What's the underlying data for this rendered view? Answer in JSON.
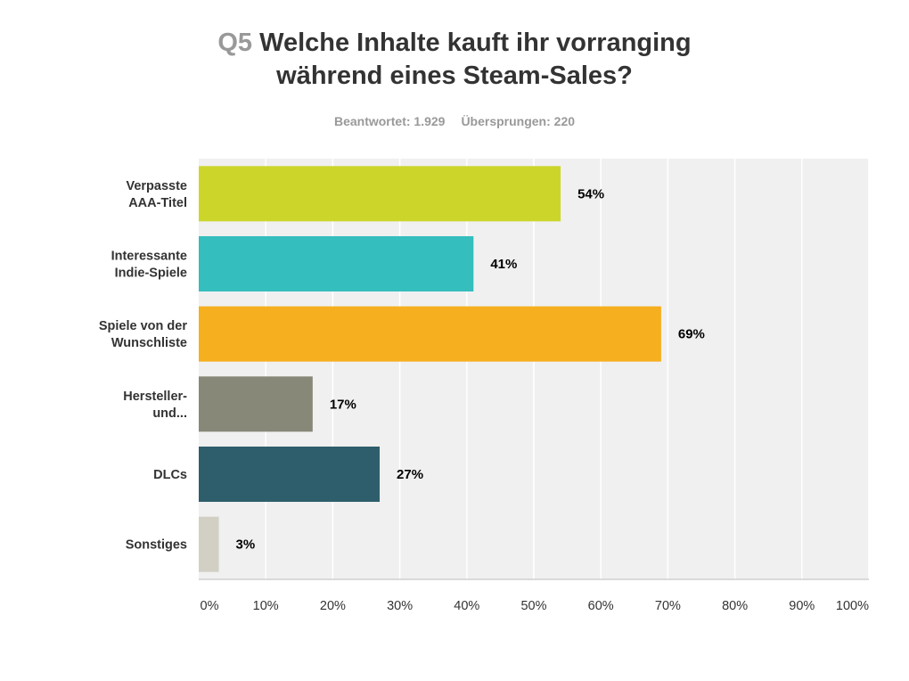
{
  "question": {
    "number": "Q5",
    "title_line1": "Welche Inhalte kauft ihr vorranging",
    "title_line2": "während eines Steam-Sales?"
  },
  "stats": {
    "answered": "Beantwortet: 1.929",
    "skipped": "Übersprungen: 220"
  },
  "chart_data": {
    "type": "bar",
    "orientation": "horizontal",
    "title": "Welche Inhalte kauft ihr vorranging während eines Steam-Sales?",
    "categories": [
      [
        "Verpasste",
        "AAA-Titel"
      ],
      [
        "Interessante",
        "Indie-Spiele"
      ],
      [
        "Spiele von der",
        "Wunschliste"
      ],
      [
        "Hersteller-",
        "und..."
      ],
      [
        "DLCs"
      ],
      [
        "Sonstiges"
      ]
    ],
    "values": [
      54,
      41,
      69,
      17,
      27,
      3
    ],
    "value_labels": [
      "54%",
      "41%",
      "69%",
      "17%",
      "27%",
      "3%"
    ],
    "colors": [
      "#ccd62a",
      "#34bebd",
      "#f5af1f",
      "#888878",
      "#2e5e6c",
      "#d2d0c4"
    ],
    "xlim": [
      0,
      100
    ],
    "ticks": [
      "0%",
      "10%",
      "20%",
      "30%",
      "40%",
      "50%",
      "60%",
      "70%",
      "80%",
      "90%",
      "100%"
    ],
    "grid": true,
    "plot_background": "#f0f0f0"
  }
}
